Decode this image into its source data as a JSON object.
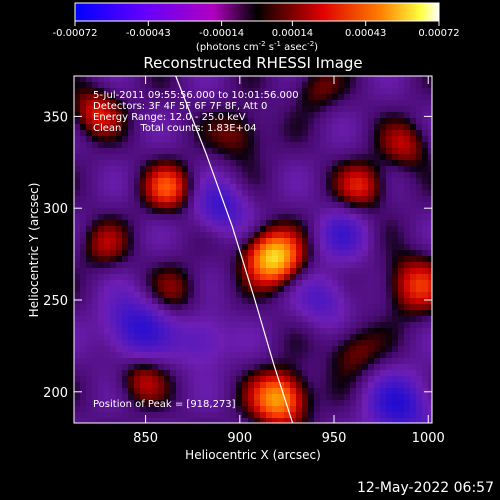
{
  "colorbar": {
    "tick_labels": [
      "-0.00072",
      "-0.00043",
      "-0.00014",
      "0.00014",
      "0.00043",
      "0.00072"
    ],
    "min": -0.00072,
    "max": 0.00072,
    "units_label": "(photons cm",
    "units_exp1": "-2",
    "units_mid": " s",
    "units_exp2": "-1",
    "units_mid2": " asec",
    "units_exp3": "-2",
    "units_end": ")",
    "colors": [
      "#0000ff",
      "#8000ff",
      "#ff0000",
      "#ff8000",
      "#ffff00",
      "#ffffff"
    ]
  },
  "plot": {
    "title": "Reconstructed RHESSI Image",
    "info_lines": [
      "5-Jul-2011 09:55:56.000 to 10:01:56.000",
      "Detectors: 3F 4F 5F 6F 7F 8F, Att 0",
      "Energy Range: 12.0 - 25.0 keV",
      "Clean      Total counts: 1.83E+04"
    ],
    "peak_label": "Position of Peak = [918,273]"
  },
  "chart_data": {
    "type": "heatmap",
    "title": "Reconstructed RHESSI Image",
    "xlabel": "Heliocentric X (arcsec)",
    "ylabel": "Heliocentric Y (arcsec)",
    "xlim": [
      812,
      1002
    ],
    "ylim": [
      183,
      372
    ],
    "x_ticks": [
      850,
      900,
      950,
      1000
    ],
    "y_ticks": [
      200,
      250,
      300,
      350
    ],
    "colorbar_range": [
      -0.00072,
      0.00072
    ],
    "peak_position": [
      918,
      273
    ],
    "sources": [
      {
        "x": 918,
        "y": 273,
        "amp": 1.0,
        "sigma": 10
      },
      {
        "x": 921,
        "y": 196,
        "amp": 0.85,
        "sigma": 10
      },
      {
        "x": 862,
        "y": 311,
        "amp": 0.55,
        "sigma": 9
      },
      {
        "x": 824,
        "y": 352,
        "amp": 0.45,
        "sigma": 9
      },
      {
        "x": 993,
        "y": 258,
        "amp": 0.5,
        "sigma": 11
      },
      {
        "x": 965,
        "y": 312,
        "amp": 0.45,
        "sigma": 9
      },
      {
        "x": 988,
        "y": 334,
        "amp": 0.35,
        "sigma": 9
      },
      {
        "x": 848,
        "y": 206,
        "amp": 0.35,
        "sigma": 9
      },
      {
        "x": 866,
        "y": 255,
        "amp": 0.25,
        "sigma": 10
      },
      {
        "x": 960,
        "y": 222,
        "amp": 0.3,
        "sigma": 10
      },
      {
        "x": 900,
        "y": 340,
        "amp": 0.3,
        "sigma": 10
      },
      {
        "x": 940,
        "y": 365,
        "amp": 0.25,
        "sigma": 9
      },
      {
        "x": 828,
        "y": 280,
        "amp": 0.3,
        "sigma": 9
      },
      {
        "x": 845,
        "y": 235,
        "amp": -0.55,
        "sigma": 12
      },
      {
        "x": 890,
        "y": 300,
        "amp": -0.45,
        "sigma": 10
      },
      {
        "x": 985,
        "y": 192,
        "amp": -0.55,
        "sigma": 12
      },
      {
        "x": 945,
        "y": 250,
        "amp": -0.35,
        "sigma": 10
      },
      {
        "x": 955,
        "y": 285,
        "amp": -0.35,
        "sigma": 10
      },
      {
        "x": 880,
        "y": 228,
        "amp": -0.35,
        "sigma": 10
      }
    ],
    "limb_curve": [
      [
        866,
        372
      ],
      [
        882,
        330
      ],
      [
        896,
        290
      ],
      [
        908,
        250
      ],
      [
        918,
        215
      ],
      [
        928,
        183
      ]
    ]
  },
  "footer": {
    "timestamp": "12-May-2022 06:57"
  }
}
